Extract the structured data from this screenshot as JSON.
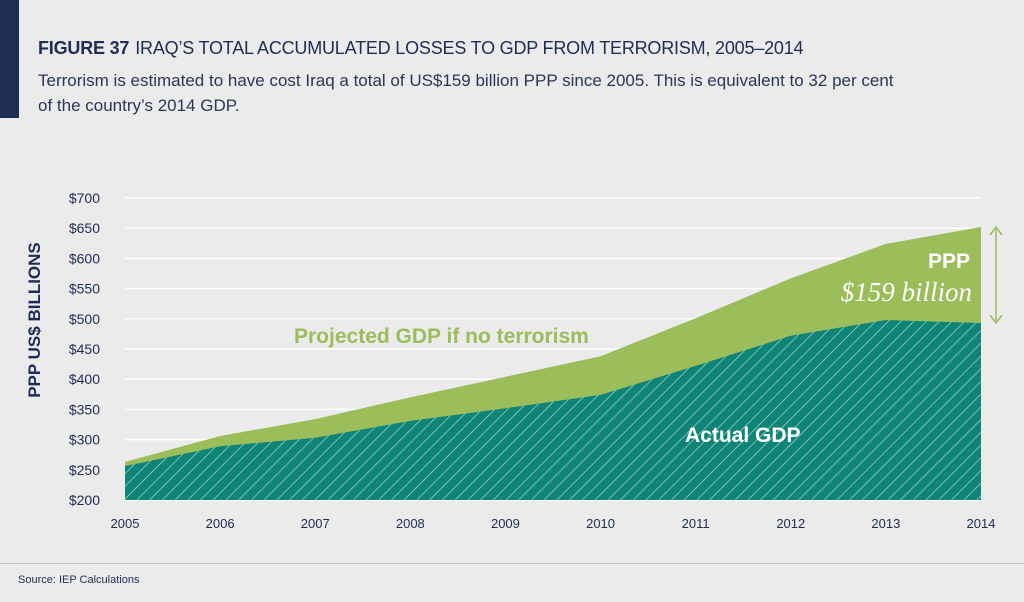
{
  "header": {
    "figure_label": "FIGURE 37",
    "title": "IRAQ’S TOTAL ACCUMULATED LOSSES TO GDP FROM TERRORISM, 2005–2014",
    "subtitle": "Terrorism is estimated to have cost Iraq a total of US$159 billion PPP since 2005. This is equivalent to 32 per cent of the country’s 2014 GDP."
  },
  "source": "Source: IEP Calculations",
  "colors": {
    "actual": "#0e8577",
    "projected": "#9bbd5a",
    "navy": "#1f2d54",
    "background": "#ebebeb"
  },
  "chart_data": {
    "type": "area",
    "ylabel": "PPP US$ BILLIONS",
    "ylim": [
      200,
      700
    ],
    "yticks": [
      "$200",
      "$250",
      "$300",
      "$350",
      "$400",
      "$450",
      "$500",
      "$550",
      "$600",
      "$650",
      "$700"
    ],
    "x": [
      "2005",
      "2006",
      "2007",
      "2008",
      "2009",
      "2010",
      "2011",
      "2012",
      "2013",
      "2014"
    ],
    "grid": true,
    "series": [
      {
        "name": "Projected GDP if no terrorism",
        "values": [
          263,
          306,
          334,
          370,
          404,
          438,
          501,
          567,
          624,
          652
        ]
      },
      {
        "name": "Actual GDP",
        "values": [
          256,
          289,
          303,
          331,
          352,
          374,
          422,
          472,
          498,
          493
        ]
      }
    ],
    "annotation": {
      "line1": "PPP",
      "line2": "$159 billion"
    }
  }
}
